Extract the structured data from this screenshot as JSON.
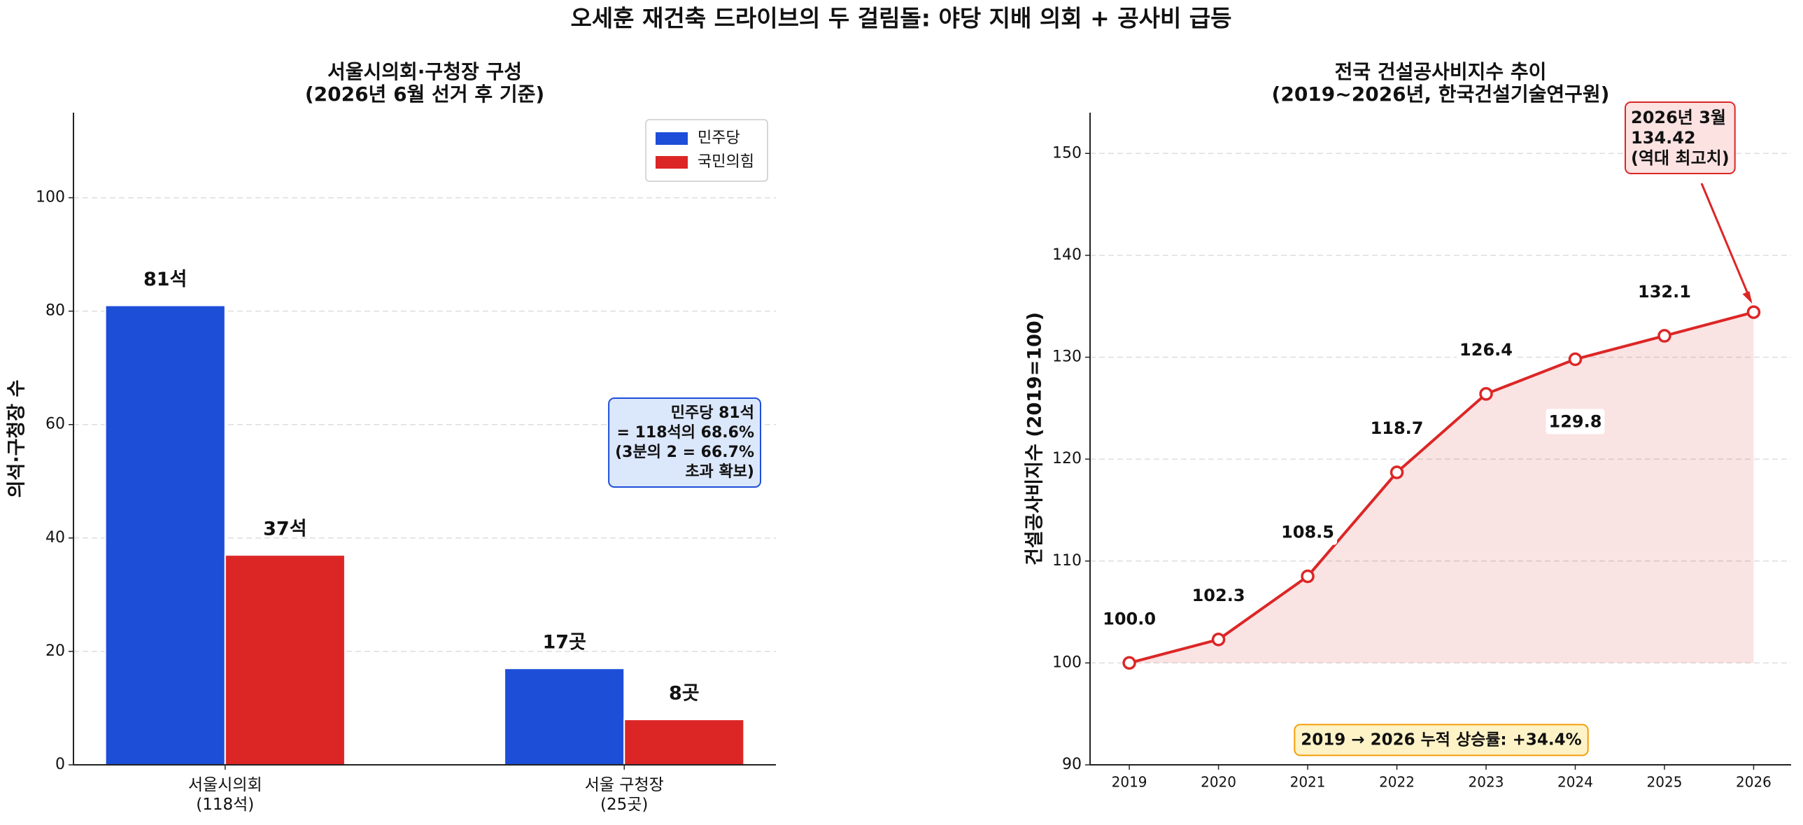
{
  "title": "오세훈 재건축 드라이브의 두 걸림돌: 야당 지배 의회 + 공사비 급등",
  "chart_data": [
    {
      "type": "bar",
      "title": "서울시의회·구청장 구성\n(2026년 6월 선거 후 기준)",
      "ylabel": "의석·구청장 수",
      "categories": [
        "서울시의회\n(118석)",
        "서울 구청장\n(25곳)"
      ],
      "series": [
        {
          "name": "민주당",
          "color": "#1d4ed8",
          "values": [
            81,
            17
          ],
          "value_labels": [
            "81석",
            "17곳"
          ]
        },
        {
          "name": "국민의힘",
          "color": "#dc2626",
          "values": [
            37,
            8
          ],
          "value_labels": [
            "37석",
            "8곳"
          ]
        }
      ],
      "ylim": [
        0,
        115
      ],
      "yticks": [
        0,
        20,
        40,
        60,
        80,
        100
      ],
      "grid": true,
      "legend": "upper right",
      "annotation": "민주당 81석\n= 118석의 68.6%\n(3분의 2 = 66.7%\n초과 확보)"
    },
    {
      "type": "line",
      "title": "전국 건설공사비지수 추이\n(2019~2026년, 한국건설기술연구원)",
      "ylabel": "건설공사비지수 (2019=100)",
      "x": [
        2019,
        2020,
        2021,
        2022,
        2023,
        2024,
        2025,
        2026
      ],
      "series": [
        {
          "color": "#dc2626",
          "values": [
            100.0,
            102.3,
            108.5,
            118.7,
            126.4,
            129.8,
            132.1,
            134.42
          ],
          "value_labels": [
            "100.0",
            "102.3",
            "108.5",
            "118.7",
            "126.4",
            "129.8",
            "132.1",
            null
          ]
        }
      ],
      "fill_to": 100,
      "xlim": [
        2018.56,
        2026.42
      ],
      "xticks": [
        2019,
        2020,
        2021,
        2022,
        2023,
        2024,
        2025,
        2026
      ],
      "ylim": [
        90,
        154
      ],
      "yticks": [
        90,
        100,
        110,
        120,
        130,
        140,
        150
      ],
      "grid": true,
      "peak_annotation": "2026년 3월\n134.42\n(역대 최고치)",
      "note": "2019 → 2026 누적 상승률: +34.4%"
    }
  ]
}
